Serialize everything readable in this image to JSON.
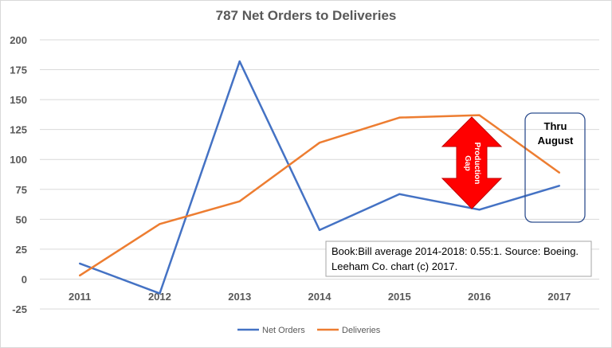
{
  "chart_data": {
    "type": "line",
    "title": "787 Net Orders to Deliveries",
    "categories": [
      "2011",
      "2012",
      "2013",
      "2014",
      "2015",
      "2016",
      "2017"
    ],
    "series": [
      {
        "name": "Net Orders",
        "color": "#4472c4",
        "values": [
          13,
          -12,
          182,
          41,
          71,
          58,
          78
        ]
      },
      {
        "name": "Deliveries",
        "color": "#ed7d31",
        "values": [
          3,
          46,
          65,
          114,
          135,
          137,
          89
        ]
      }
    ],
    "yticks": [
      "200",
      "175",
      "150",
      "125",
      "100",
      "75",
      "50",
      "25",
      "0",
      "-25"
    ],
    "ylim": [
      -25,
      200
    ],
    "grid": true,
    "legend_position": "bottom",
    "annotations": {
      "note": [
        "Book:Bill average 2014-2018: 0.55:1. Source: Boeing.",
        "Leeham Co. chart (c) 2017."
      ],
      "thru": [
        "Thru",
        "August"
      ],
      "gap": [
        "Production",
        "Gap"
      ],
      "gap_color": "#ff0000"
    }
  }
}
